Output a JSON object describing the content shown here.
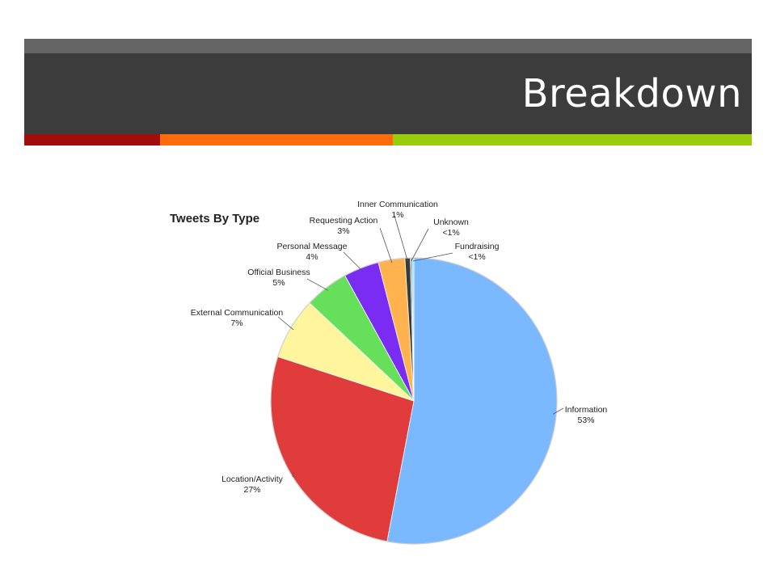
{
  "slide": {
    "title": "Breakdown",
    "colors": {
      "top_strip": "#646464",
      "title_bar": "#3c3c3c",
      "accent_1": "#a10d0d",
      "accent_2": "#ff6a0a",
      "accent_3": "#99cc0a"
    }
  },
  "chart_data": {
    "type": "pie",
    "title": "Tweets By Type",
    "slices": [
      {
        "name": "Information",
        "value_label": "53%",
        "value": 53,
        "color": "#7ab8ff"
      },
      {
        "name": "Location/Activity",
        "value_label": "27%",
        "value": 27,
        "color": "#e03c3c"
      },
      {
        "name": "External Communication",
        "value_label": "7%",
        "value": 7,
        "color": "#fff59c"
      },
      {
        "name": "Official Business",
        "value_label": "5%",
        "value": 5,
        "color": "#66e05a"
      },
      {
        "name": "Personal Message",
        "value_label": "4%",
        "value": 4,
        "color": "#7a2cf2"
      },
      {
        "name": "Requesting Action",
        "value_label": "3%",
        "value": 3,
        "color": "#ffb24d"
      },
      {
        "name": "Inner Communication",
        "value_label": "1%",
        "value": 0.6,
        "color": "#3a3a3a"
      },
      {
        "name": "Unknown",
        "value_label": "<1%",
        "value": 0.2,
        "color": "#5aa8b0"
      },
      {
        "name": "Fundraising",
        "value_label": "<1%",
        "value": 0.2,
        "color": "#9ad0ff"
      }
    ]
  }
}
